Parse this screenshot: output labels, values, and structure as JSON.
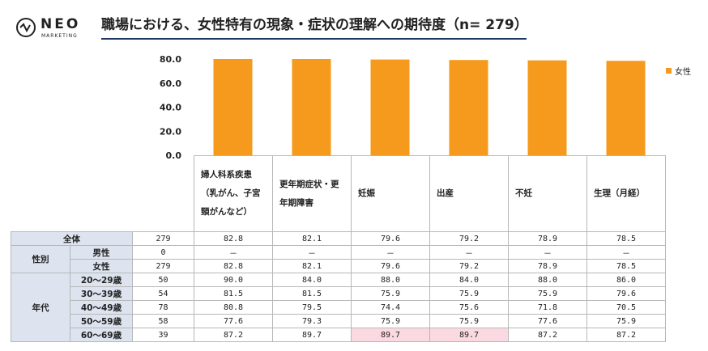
{
  "logo": {
    "text": "NEO",
    "sub": "MARKETING"
  },
  "title": "職場における、女性特有の現象・症状の理解への期待度（n= 279）",
  "legend": {
    "label": "女性"
  },
  "colors": {
    "bar": "#f59a1c",
    "label_bg": "#dde4ef",
    "highlight": "#fbd9e2",
    "title_rule": "#1f3864"
  },
  "chart_data": {
    "type": "bar",
    "title": "職場における、女性特有の現象・症状の理解への期待度（n= 279）",
    "categories": [
      "婦人科系疾患（乳がん、子宮頸がんなど）",
      "更年期症状・更年期障害",
      "妊娠",
      "出産",
      "不妊",
      "生理（月経）"
    ],
    "series": [
      {
        "name": "女性",
        "values": [
          82.8,
          82.1,
          79.6,
          79.2,
          78.9,
          78.5
        ]
      }
    ],
    "ylim": [
      0,
      80
    ],
    "yticks": [
      "0.0",
      "20.0",
      "40.0",
      "60.0",
      "80.0"
    ],
    "grid": false,
    "legend_position": "right"
  },
  "table": {
    "headers": [
      "婦人科系疾患\n（乳がん、子宮\n頸がんなど）",
      "更年期症状・更\n年期障害",
      "妊娠",
      "出産",
      "不妊",
      "生理（月経）"
    ],
    "rows": [
      {
        "group": "全体",
        "label": "",
        "n": "279",
        "values": [
          "82.8",
          "82.1",
          "79.6",
          "79.2",
          "78.9",
          "78.5"
        ]
      },
      {
        "group": "性別",
        "label": "男性",
        "n": "0",
        "values": [
          "－",
          "－",
          "－",
          "－",
          "－",
          "－"
        ]
      },
      {
        "group": "",
        "label": "女性",
        "n": "279",
        "values": [
          "82.8",
          "82.1",
          "79.6",
          "79.2",
          "78.9",
          "78.5"
        ]
      },
      {
        "group": "年代",
        "label": "20～29歳",
        "n": "50",
        "values": [
          "90.0",
          "84.0",
          "88.0",
          "84.0",
          "88.0",
          "86.0"
        ]
      },
      {
        "group": "",
        "label": "30～39歳",
        "n": "54",
        "values": [
          "81.5",
          "81.5",
          "75.9",
          "75.9",
          "75.9",
          "79.6"
        ]
      },
      {
        "group": "",
        "label": "40～49歳",
        "n": "78",
        "values": [
          "80.8",
          "79.5",
          "74.4",
          "75.6",
          "71.8",
          "70.5"
        ]
      },
      {
        "group": "",
        "label": "50～59歳",
        "n": "58",
        "values": [
          "77.6",
          "79.3",
          "75.9",
          "75.9",
          "77.6",
          "75.9"
        ]
      },
      {
        "group": "",
        "label": "60～69歳",
        "n": "39",
        "values": [
          "87.2",
          "89.7",
          "89.7",
          "89.7",
          "87.2",
          "87.2"
        ]
      }
    ]
  }
}
